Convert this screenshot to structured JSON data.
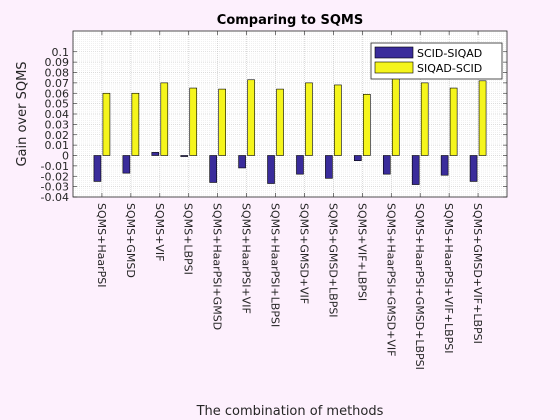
{
  "chart_data": {
    "type": "bar",
    "title": "Comparing to SQMS",
    "xlabel": "The combination of methods",
    "ylabel": "Gain over SQMS",
    "ylim": [
      -0.04,
      0.12
    ],
    "yticks": [
      -0.04,
      -0.03,
      -0.02,
      -0.01,
      0,
      0.01,
      0.02,
      0.03,
      0.04,
      0.05,
      0.06,
      0.07,
      0.08,
      0.09,
      0.1
    ],
    "grid": true,
    "legend_position": "top-right",
    "categories": [
      "SQMS+HaarPSI",
      "SQMS+GMSD",
      "SQMS+VIF",
      "SQMS+LBPSI",
      "SQMS+HaarPSI+GMSD",
      "SQMS+HaarPSI+VIF",
      "SQMS+HaarPSI+LBPSI",
      "SQMS+GMSD+VIF",
      "SQMS+GMSD+LBPSI",
      "SQMS+VIF+LBPSI",
      "SQMS+HaarPSI+GMSD+VIF",
      "SQMS+HaarPSI+GMSD+LBPSI",
      "SQMS+HaarPSI+VIF+LBPSI",
      "SQMS+GMSD+VIF+LBPSI"
    ],
    "series": [
      {
        "name": "SCID-SIQAD",
        "color": "#3a2c9b",
        "values": [
          -0.025,
          -0.017,
          0.003,
          -0.001,
          -0.026,
          -0.012,
          -0.027,
          -0.018,
          -0.022,
          -0.005,
          -0.018,
          -0.028,
          -0.019,
          -0.025
        ]
      },
      {
        "name": "SIQAD-SCID",
        "color": "#f5f51c",
        "values": [
          0.06,
          0.06,
          0.07,
          0.065,
          0.064,
          0.073,
          0.064,
          0.07,
          0.068,
          0.059,
          0.075,
          0.07,
          0.065,
          0.072
        ]
      }
    ]
  }
}
